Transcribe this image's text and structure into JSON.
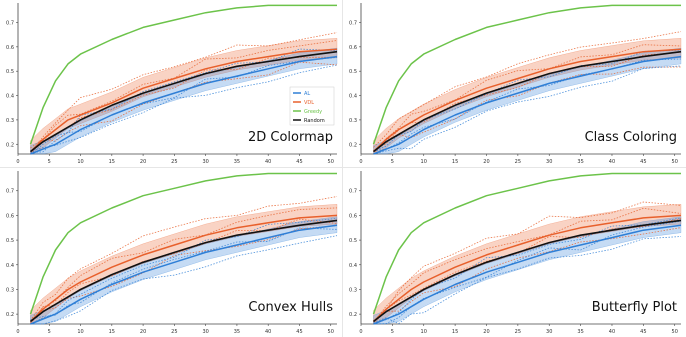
{
  "chart_data": [
    {
      "type": "line",
      "title": "2D Colormap",
      "x_ticks": [
        0,
        5,
        10,
        15,
        20,
        25,
        30,
        35,
        40,
        45,
        50
      ],
      "y_ticks": [
        0.2,
        0.3,
        0.4,
        0.5,
        0.6,
        0.7
      ],
      "xlim": [
        0,
        51
      ],
      "ylim": [
        0.16,
        0.78
      ],
      "legend": {
        "placement": "upper-right",
        "entries": [
          "AL",
          "VDL",
          "Greedy",
          "Random"
        ]
      },
      "x": [
        2,
        4,
        6,
        8,
        10,
        15,
        20,
        25,
        30,
        35,
        40,
        45,
        51
      ],
      "series": [
        {
          "name": "AL",
          "color": "#2f7fd6",
          "values": [
            0.16,
            0.18,
            0.2,
            0.23,
            0.26,
            0.32,
            0.37,
            0.41,
            0.45,
            0.48,
            0.51,
            0.54,
            0.56
          ]
        },
        {
          "name": "VDL",
          "color": "#e8602c",
          "values": [
            0.17,
            0.22,
            0.26,
            0.3,
            0.32,
            0.37,
            0.43,
            0.47,
            0.51,
            0.54,
            0.56,
            0.58,
            0.59
          ]
        },
        {
          "name": "Greedy",
          "color": "#6cc34a",
          "values": [
            0.2,
            0.35,
            0.46,
            0.53,
            0.57,
            0.63,
            0.68,
            0.71,
            0.74,
            0.76,
            0.77,
            0.77,
            0.77
          ]
        },
        {
          "name": "Random",
          "color": "#111111",
          "values": [
            0.17,
            0.21,
            0.24,
            0.27,
            0.3,
            0.36,
            0.41,
            0.45,
            0.49,
            0.52,
            0.54,
            0.56,
            0.58
          ]
        }
      ]
    },
    {
      "type": "line",
      "title": "Class Coloring",
      "x_ticks": [
        0,
        5,
        10,
        15,
        20,
        25,
        30,
        35,
        40,
        45,
        50
      ],
      "y_ticks": [
        0.2,
        0.3,
        0.4,
        0.5,
        0.6,
        0.7
      ],
      "xlim": [
        0,
        51
      ],
      "ylim": [
        0.16,
        0.78
      ],
      "x": [
        2,
        4,
        6,
        8,
        10,
        15,
        20,
        25,
        30,
        35,
        40,
        45,
        51
      ],
      "series": [
        {
          "name": "AL",
          "color": "#2f7fd6",
          "values": [
            0.16,
            0.18,
            0.2,
            0.23,
            0.26,
            0.32,
            0.37,
            0.41,
            0.45,
            0.48,
            0.51,
            0.54,
            0.56
          ]
        },
        {
          "name": "VDL",
          "color": "#e8602c",
          "values": [
            0.17,
            0.22,
            0.26,
            0.29,
            0.32,
            0.38,
            0.43,
            0.47,
            0.51,
            0.54,
            0.56,
            0.58,
            0.59
          ]
        },
        {
          "name": "Greedy",
          "color": "#6cc34a",
          "values": [
            0.2,
            0.35,
            0.46,
            0.53,
            0.57,
            0.63,
            0.68,
            0.71,
            0.74,
            0.76,
            0.77,
            0.77,
            0.77
          ]
        },
        {
          "name": "Random",
          "color": "#111111",
          "values": [
            0.17,
            0.21,
            0.24,
            0.27,
            0.3,
            0.36,
            0.41,
            0.45,
            0.49,
            0.52,
            0.54,
            0.56,
            0.58
          ]
        }
      ]
    },
    {
      "type": "line",
      "title": "Convex Hulls",
      "x_ticks": [
        0,
        5,
        10,
        15,
        20,
        25,
        30,
        35,
        40,
        45,
        50
      ],
      "y_ticks": [
        0.2,
        0.3,
        0.4,
        0.5,
        0.6,
        0.7
      ],
      "xlim": [
        0,
        51
      ],
      "ylim": [
        0.16,
        0.78
      ],
      "x": [
        2,
        4,
        6,
        8,
        10,
        15,
        20,
        25,
        30,
        35,
        40,
        45,
        51
      ],
      "series": [
        {
          "name": "AL",
          "color": "#2f7fd6",
          "values": [
            0.16,
            0.18,
            0.2,
            0.23,
            0.26,
            0.32,
            0.37,
            0.41,
            0.45,
            0.48,
            0.51,
            0.54,
            0.56
          ]
        },
        {
          "name": "VDL",
          "color": "#e8602c",
          "values": [
            0.17,
            0.22,
            0.26,
            0.3,
            0.33,
            0.39,
            0.44,
            0.48,
            0.52,
            0.55,
            0.57,
            0.59,
            0.6
          ]
        },
        {
          "name": "Greedy",
          "color": "#6cc34a",
          "values": [
            0.2,
            0.35,
            0.46,
            0.53,
            0.57,
            0.63,
            0.68,
            0.71,
            0.74,
            0.76,
            0.77,
            0.77,
            0.77
          ]
        },
        {
          "name": "Random",
          "color": "#111111",
          "values": [
            0.17,
            0.21,
            0.24,
            0.27,
            0.3,
            0.36,
            0.41,
            0.45,
            0.49,
            0.52,
            0.54,
            0.56,
            0.58
          ]
        }
      ]
    },
    {
      "type": "line",
      "title": "Butterfly Plot",
      "x_ticks": [
        0,
        5,
        10,
        15,
        20,
        25,
        30,
        35,
        40,
        45,
        50
      ],
      "y_ticks": [
        0.2,
        0.3,
        0.4,
        0.5,
        0.6,
        0.7
      ],
      "xlim": [
        0,
        51
      ],
      "ylim": [
        0.16,
        0.78
      ],
      "x": [
        2,
        4,
        6,
        8,
        10,
        15,
        20,
        25,
        30,
        35,
        40,
        45,
        51
      ],
      "series": [
        {
          "name": "AL",
          "color": "#2f7fd6",
          "values": [
            0.16,
            0.18,
            0.2,
            0.23,
            0.26,
            0.32,
            0.37,
            0.41,
            0.45,
            0.48,
            0.51,
            0.54,
            0.56
          ]
        },
        {
          "name": "VDL",
          "color": "#e8602c",
          "values": [
            0.17,
            0.22,
            0.26,
            0.3,
            0.33,
            0.39,
            0.44,
            0.48,
            0.52,
            0.55,
            0.57,
            0.59,
            0.6
          ]
        },
        {
          "name": "Greedy",
          "color": "#6cc34a",
          "values": [
            0.2,
            0.35,
            0.46,
            0.53,
            0.57,
            0.63,
            0.68,
            0.71,
            0.74,
            0.76,
            0.77,
            0.77,
            0.77
          ]
        },
        {
          "name": "Random",
          "color": "#111111",
          "values": [
            0.17,
            0.21,
            0.24,
            0.27,
            0.3,
            0.36,
            0.41,
            0.45,
            0.49,
            0.52,
            0.54,
            0.56,
            0.58
          ]
        }
      ]
    }
  ]
}
